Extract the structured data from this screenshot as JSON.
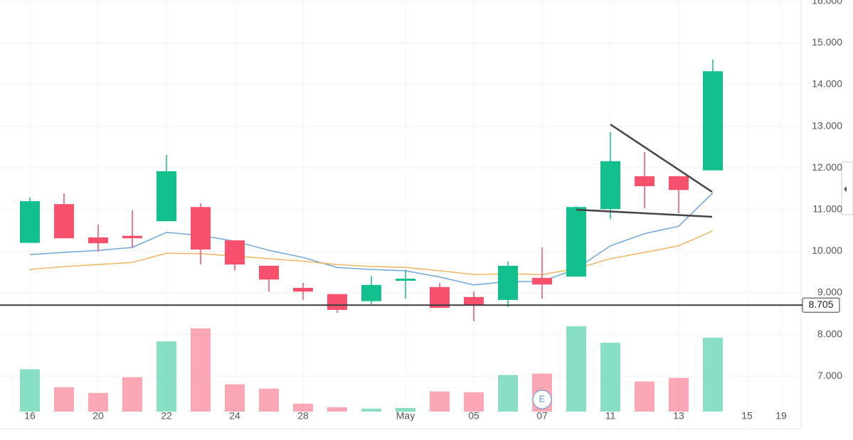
{
  "chart_data": {
    "type": "candlestick",
    "categories": [
      "16",
      null,
      "20",
      null,
      "22",
      null,
      "24",
      null,
      "28",
      null,
      null,
      "May",
      null,
      "05",
      null,
      "07",
      null,
      "11",
      null,
      "13",
      null,
      "15",
      "19"
    ],
    "open": [
      10.2,
      11.13,
      10.33,
      10.37,
      10.72,
      11.06,
      10.26,
      9.65,
      9.12,
      8.97,
      8.8,
      9.29,
      9.14,
      8.9,
      8.83,
      9.36,
      9.39,
      11.01,
      11.8,
      11.8,
      11.94,
      null,
      null
    ],
    "high": [
      11.29,
      11.39,
      10.64,
      10.98,
      12.31,
      11.15,
      10.26,
      9.65,
      9.24,
      8.97,
      9.41,
      9.55,
      9.24,
      9.03,
      9.75,
      10.09,
      11.08,
      12.86,
      12.38,
      11.8,
      14.6,
      null,
      null
    ],
    "low": [
      10.2,
      10.31,
      9.99,
      10.09,
      10.72,
      9.68,
      9.53,
      9.03,
      8.83,
      8.52,
      8.73,
      8.86,
      8.64,
      8.32,
      8.66,
      8.86,
      9.39,
      10.77,
      11.03,
      10.91,
      11.94,
      null,
      null
    ],
    "close": [
      11.2,
      10.31,
      10.19,
      10.31,
      11.92,
      10.04,
      9.68,
      9.32,
      9.03,
      8.59,
      9.19,
      9.34,
      8.64,
      8.71,
      9.65,
      9.2,
      11.06,
      12.16,
      11.56,
      11.47,
      14.32,
      null,
      null
    ],
    "volume": [
      59,
      34,
      26,
      48,
      98,
      116,
      38,
      32,
      11,
      6,
      4,
      5,
      28,
      27,
      51,
      53,
      119,
      96,
      42,
      47,
      103,
      null,
      null
    ],
    "up_color": "#13c08d",
    "down_color": "#f7506d",
    "series": [
      {
        "color": "#6fa6dc",
        "values": [
          9.92,
          9.97,
          10.02,
          10.09,
          10.45,
          10.38,
          10.24,
          10.02,
          9.85,
          9.61,
          9.56,
          9.53,
          9.38,
          9.19,
          9.27,
          9.27,
          9.58,
          10.13,
          10.42,
          10.6,
          11.4,
          null,
          null
        ]
      },
      {
        "color": "#f2b660",
        "values": [
          9.56,
          9.63,
          9.68,
          9.73,
          9.95,
          9.94,
          9.88,
          9.82,
          9.76,
          9.68,
          9.63,
          9.61,
          9.53,
          9.44,
          9.46,
          9.44,
          9.58,
          9.82,
          9.97,
          10.13,
          10.49,
          null,
          null
        ]
      }
    ],
    "price_line": {
      "value": 8.705,
      "label": "8.705"
    },
    "event_marker": "E",
    "ylim": [
      6.15,
      16.03
    ],
    "yticks": [
      {
        "value": 7,
        "label": "7.000"
      },
      {
        "value": 8,
        "label": "8.000"
      },
      {
        "value": 9,
        "label": "9.000"
      },
      {
        "value": 10,
        "label": "10.000"
      },
      {
        "value": 11,
        "label": "11.000"
      },
      {
        "value": 12,
        "label": "12.000"
      },
      {
        "value": 13,
        "label": "13.000"
      },
      {
        "value": 14,
        "label": "14.000"
      },
      {
        "value": 15,
        "label": "15.000"
      },
      {
        "value": 16,
        "label": "16.000"
      }
    ],
    "grid": true
  }
}
